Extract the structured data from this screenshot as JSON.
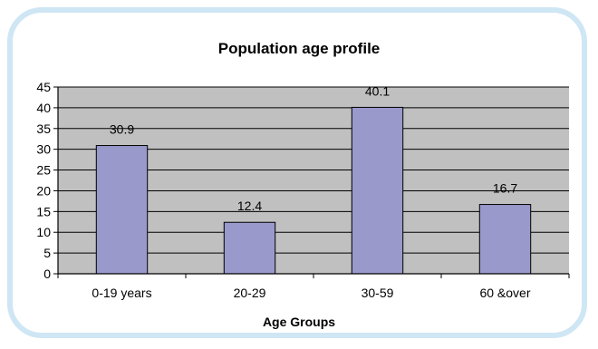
{
  "chart_data": {
    "type": "bar",
    "title": "Population age profile",
    "xlabel": "Age Groups",
    "ylabel": "",
    "categories": [
      "0-19 years",
      "20-29",
      "30-59",
      "60 &over"
    ],
    "values": [
      30.9,
      12.4,
      40.1,
      16.7
    ],
    "data_labels": [
      "30.9",
      "12.4",
      "40.1",
      "16.7"
    ],
    "ylim": [
      0,
      45
    ],
    "yticks": [
      0,
      5,
      10,
      15,
      20,
      25,
      30,
      35,
      40,
      45
    ],
    "grid": true,
    "legend": "none",
    "colors": {
      "bar": "#9999cc",
      "plot_background": "#c0c0c0",
      "frame_border": "#cfe6f4"
    }
  }
}
